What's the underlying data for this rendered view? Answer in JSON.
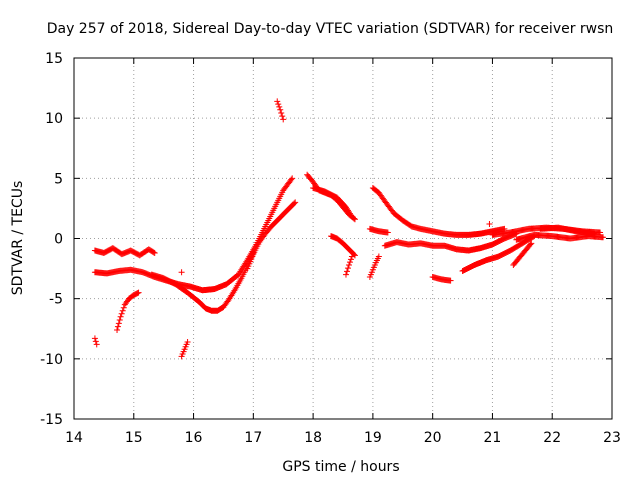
{
  "chart_data": {
    "type": "scatter",
    "title": "Day 257 of 2018, Sidereal Day-to-day VTEC variation (SDTVAR) for receiver rwsn",
    "xlabel": "GPS time / hours",
    "ylabel": "SDTVAR / TECUs",
    "xlim": [
      14,
      23
    ],
    "ylim": [
      -15,
      15
    ],
    "xticks": [
      14,
      15,
      16,
      17,
      18,
      19,
      20,
      21,
      22,
      23
    ],
    "yticks": [
      -15,
      -10,
      -5,
      0,
      5,
      10,
      15
    ],
    "grid": true,
    "marker": "+",
    "color": "#ff0000",
    "series": [
      {
        "name": "track-1",
        "x": [
          14.35,
          14.5,
          14.65,
          14.8,
          14.95,
          15.1,
          15.25,
          15.35
        ],
        "y": [
          -1.0,
          -1.2,
          -0.8,
          -1.3,
          -1.0,
          -1.4,
          -0.9,
          -1.2
        ]
      },
      {
        "name": "track-2",
        "x": [
          14.35,
          14.55,
          14.75,
          14.95,
          15.15,
          15.35,
          15.55,
          15.75,
          15.95,
          16.15,
          16.35,
          16.55,
          16.75,
          16.9,
          17.05,
          17.2,
          17.35,
          17.5,
          17.65
        ],
        "y": [
          -2.8,
          -2.9,
          -2.7,
          -2.6,
          -2.8,
          -3.2,
          -3.5,
          -3.8,
          -4.0,
          -4.3,
          -4.2,
          -3.8,
          -3.0,
          -1.8,
          -0.5,
          1.0,
          2.5,
          4.0,
          5.0
        ]
      },
      {
        "name": "track-3",
        "x": [
          14.35,
          14.38
        ],
        "y": [
          -8.3,
          -8.8
        ]
      },
      {
        "name": "track-4",
        "x": [
          14.72,
          14.78,
          14.85,
          14.92,
          15.0,
          15.08
        ],
        "y": [
          -7.6,
          -6.5,
          -5.5,
          -5.0,
          -4.7,
          -4.5
        ]
      },
      {
        "name": "track-5",
        "x": [
          15.8,
          15.85,
          15.9
        ],
        "y": [
          -9.8,
          -9.2,
          -8.6
        ]
      },
      {
        "name": "track-6",
        "x": [
          15.8
        ],
        "y": [
          -2.8
        ]
      },
      {
        "name": "track-7",
        "x": [
          15.3,
          15.5,
          15.7,
          15.9,
          16.1,
          16.2,
          16.3,
          16.4,
          16.5,
          16.6,
          16.7,
          16.8,
          16.9,
          17.0
        ],
        "y": [
          -3.0,
          -3.3,
          -3.8,
          -4.5,
          -5.3,
          -5.8,
          -6.0,
          -6.0,
          -5.7,
          -5.0,
          -4.2,
          -3.3,
          -2.3,
          -1.2
        ]
      },
      {
        "name": "track-8",
        "x": [
          16.9,
          17.0,
          17.1,
          17.2,
          17.3,
          17.4,
          17.5,
          17.6,
          17.7
        ],
        "y": [
          -2.5,
          -1.3,
          -0.3,
          0.4,
          1.0,
          1.5,
          2.0,
          2.5,
          3.0
        ]
      },
      {
        "name": "track-9",
        "x": [
          17.4,
          17.45,
          17.5
        ],
        "y": [
          11.4,
          10.7,
          9.9
        ]
      },
      {
        "name": "track-10",
        "x": [
          17.9,
          18.0,
          18.1,
          18.2,
          18.3,
          18.4,
          18.5,
          18.6,
          18.7
        ],
        "y": [
          5.3,
          4.7,
          4.0,
          3.8,
          3.6,
          3.2,
          2.6,
          2.0,
          1.6
        ]
      },
      {
        "name": "track-11",
        "x": [
          18.0,
          18.2,
          18.4,
          18.55,
          18.65
        ],
        "y": [
          4.2,
          3.9,
          3.4,
          2.6,
          1.8
        ]
      },
      {
        "name": "track-12",
        "x": [
          18.3,
          18.4,
          18.5,
          18.6,
          18.7
        ],
        "y": [
          0.2,
          0.0,
          -0.4,
          -0.9,
          -1.4
        ]
      },
      {
        "name": "track-13",
        "x": [
          18.55,
          18.6,
          18.65
        ],
        "y": [
          -3.0,
          -2.2,
          -1.5
        ]
      },
      {
        "name": "track-14",
        "x": [
          18.95,
          19.0,
          19.05,
          19.1
        ],
        "y": [
          -3.2,
          -2.6,
          -2.0,
          -1.5
        ]
      },
      {
        "name": "track-15",
        "x": [
          18.95,
          19.1,
          19.25
        ],
        "y": [
          0.8,
          0.6,
          0.5
        ]
      },
      {
        "name": "track-16",
        "x": [
          19.0,
          19.1,
          19.2,
          19.35,
          19.5,
          19.65,
          19.8,
          20.0,
          20.2,
          20.4,
          20.6,
          20.8,
          21.0,
          21.2
        ],
        "y": [
          4.2,
          3.8,
          3.1,
          2.1,
          1.5,
          1.0,
          0.8,
          0.6,
          0.4,
          0.3,
          0.3,
          0.4,
          0.6,
          0.8
        ]
      },
      {
        "name": "track-17",
        "x": [
          19.2,
          19.4,
          19.6,
          19.8,
          20.0,
          20.2,
          20.4,
          20.6,
          20.8,
          21.0,
          21.2,
          21.4
        ],
        "y": [
          -0.6,
          -0.3,
          -0.5,
          -0.4,
          -0.6,
          -0.6,
          -0.9,
          -1.0,
          -0.8,
          -0.5,
          0.0,
          0.4
        ]
      },
      {
        "name": "track-18",
        "x": [
          20.0,
          20.15,
          20.3
        ],
        "y": [
          -3.2,
          -3.4,
          -3.5
        ]
      },
      {
        "name": "track-19",
        "x": [
          20.5,
          20.7,
          20.9,
          21.1,
          21.3,
          21.5,
          21.7
        ],
        "y": [
          -2.7,
          -2.2,
          -1.8,
          -1.5,
          -1.0,
          -0.4,
          0.2
        ]
      },
      {
        "name": "track-20",
        "x": [
          20.95
        ],
        "y": [
          1.2
        ]
      },
      {
        "name": "track-21",
        "x": [
          21.35,
          21.45,
          21.55,
          21.65
        ],
        "y": [
          -2.2,
          -1.6,
          -1.0,
          -0.4
        ]
      },
      {
        "name": "track-22",
        "x": [
          21.0,
          21.3,
          21.6,
          21.9,
          22.2,
          22.5,
          22.8
        ],
        "y": [
          0.3,
          0.5,
          0.8,
          0.9,
          0.8,
          0.6,
          0.5
        ]
      },
      {
        "name": "track-23",
        "x": [
          21.4,
          21.7,
          22.0,
          22.3,
          22.6,
          22.85
        ],
        "y": [
          -0.1,
          0.3,
          0.2,
          0.0,
          0.2,
          0.1
        ]
      },
      {
        "name": "track-24",
        "x": [
          21.8,
          22.1,
          22.4,
          22.7
        ],
        "y": [
          0.8,
          0.9,
          0.6,
          0.4
        ]
      }
    ]
  }
}
